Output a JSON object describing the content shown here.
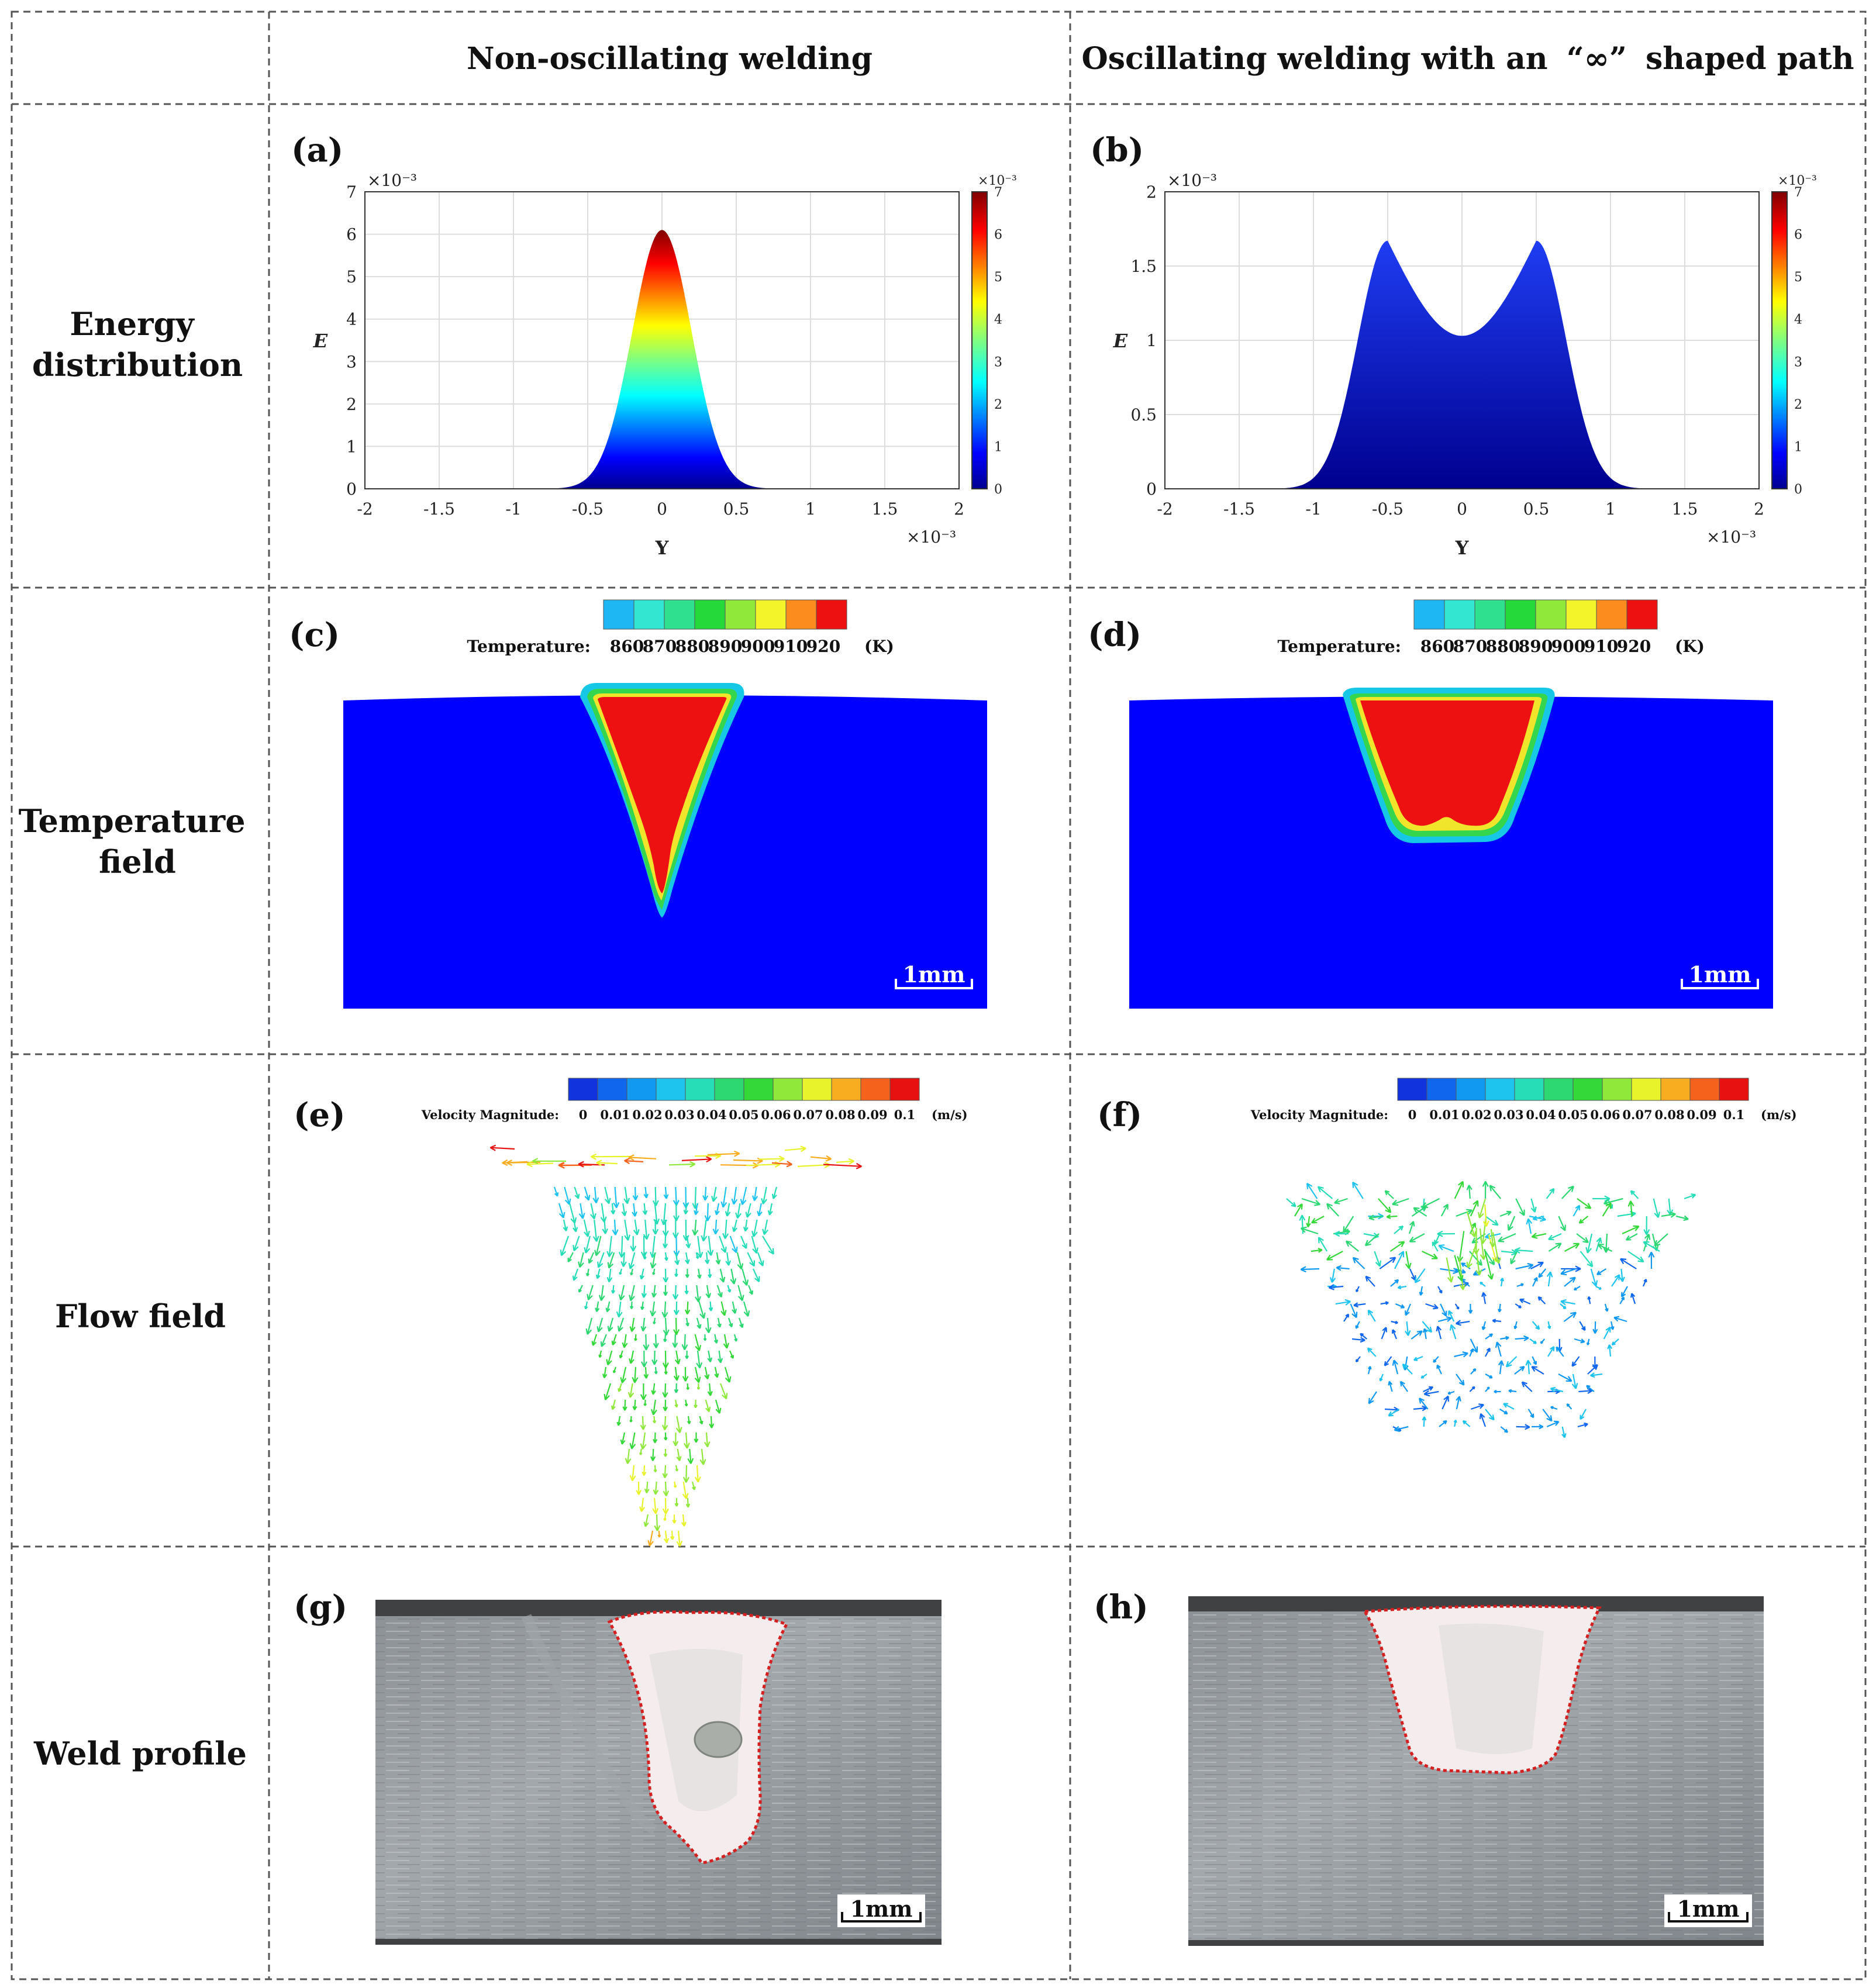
{
  "headers": {
    "col1": "Non-oscillating welding",
    "col2_pre": "Oscillating welding with an",
    "col2_sym": "“∞”",
    "col2_post": "shaped path"
  },
  "rows": {
    "energy": [
      "Energy",
      "distribution"
    ],
    "temperature": [
      "Temperature",
      "field"
    ],
    "flow": "Flow field",
    "weld": "Weld profile"
  },
  "panel_labels": [
    "(a)",
    "(b)",
    "(c)",
    "(d)",
    "(e)",
    "(f)",
    "(g)",
    "(h)"
  ],
  "scale_bar": "1mm",
  "temperature_legend": {
    "label": "Temperature:",
    "ticks": [
      "860",
      "870",
      "880",
      "890",
      "900",
      "910",
      "920"
    ],
    "unit": "(K)",
    "colors": [
      "#1fb6f4",
      "#33e6d2",
      "#2fe08f",
      "#25d93a",
      "#8fe83a",
      "#f4f42a",
      "#fb8c1d",
      "#ee1111"
    ]
  },
  "velocity_legend": {
    "label": "Velocity Magnitude:",
    "ticks": [
      "0",
      "0.01",
      "0.02",
      "0.03",
      "0.04",
      "0.05",
      "0.06",
      "0.07",
      "0.08",
      "0.09",
      "0.1"
    ],
    "unit": "(m/s)",
    "colors": [
      "#1133dd",
      "#1166ee",
      "#1199f2",
      "#1fc4ee",
      "#26ddb8",
      "#2dd873",
      "#35d839",
      "#8fe83a",
      "#e8f32c",
      "#f7ad1f",
      "#f5621b",
      "#e81111"
    ]
  },
  "chart_data": [
    {
      "type": "area",
      "title": "(a) Energy distribution, non-oscillating welding",
      "xlabel": "Y",
      "ylabel": "E",
      "x_multiplier": "×10⁻³",
      "y_multiplier": "×10⁻³",
      "xlim": [
        -2,
        2
      ],
      "ylim": [
        0,
        7
      ],
      "xticks": [
        "-2",
        "-1.5",
        "-1",
        "-0.5",
        "0",
        "0.5",
        "1",
        "1.5",
        "2"
      ],
      "yticks": [
        "0",
        "1",
        "2",
        "3",
        "4",
        "5",
        "6",
        "7"
      ],
      "colorbar": {
        "range": [
          0,
          7
        ],
        "ticks": [
          "0",
          "1",
          "2",
          "3",
          "4",
          "5",
          "6",
          "7"
        ],
        "multiplier": "×10⁻³"
      },
      "curve": {
        "kind": "single-gaussian",
        "peak_y": 0,
        "peak_value": 6.1,
        "half_width": 0.2
      }
    },
    {
      "type": "area",
      "title": "(b) Energy distribution, oscillating welding",
      "xlabel": "Y",
      "ylabel": "E",
      "x_multiplier": "×10⁻³",
      "y_multiplier": "×10⁻³",
      "xlim": [
        -2,
        2
      ],
      "ylim": [
        0,
        2
      ],
      "xticks": [
        "-2",
        "-1.5",
        "-1",
        "-0.5",
        "0",
        "0.5",
        "1",
        "1.5",
        "2"
      ],
      "yticks": [
        "0",
        "0.5",
        "1",
        "1.5",
        "2"
      ],
      "colorbar": {
        "range": [
          0,
          7
        ],
        "ticks": [
          "0",
          "1",
          "2",
          "3",
          "4",
          "5",
          "6",
          "7"
        ],
        "multiplier": "×10⁻³"
      },
      "curve": {
        "kind": "double-peak",
        "peak_positions": [
          -0.5,
          0.5
        ],
        "peak_value": 1.67,
        "center_value": 1.03,
        "support": [
          -1,
          1
        ]
      }
    }
  ]
}
